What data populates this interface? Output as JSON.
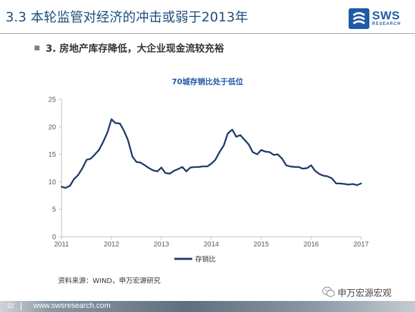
{
  "slide": {
    "title": "3.3 本轮监管对经济的冲击或弱于2013年",
    "subheading": "3. 房地产库存降低，大企业现金流较充裕"
  },
  "logo": {
    "text": "SWS",
    "subtext": "RESEARCH"
  },
  "source_note": "资料来源：WIND，申万宏源研究",
  "wechat_label": "申万宏源宏观",
  "footer": {
    "page_number": "22",
    "url": "www.swsresearch.com",
    "bar_color": "#5f6f80"
  },
  "colors": {
    "title": "#1f4e79",
    "accent": "#1f5aa6",
    "series": "#1f3b6b",
    "axis": "#bfbfbf"
  },
  "chart_data": {
    "type": "line",
    "title": "70城存销比处于低位",
    "xlabel": "",
    "ylabel": "",
    "ylim": [
      0,
      25
    ],
    "xlim": [
      2011,
      2017
    ],
    "y_ticks": [
      "0",
      "5",
      "10",
      "15",
      "20",
      "25"
    ],
    "x_ticks": [
      "2011",
      "2012",
      "2013",
      "2014",
      "2015",
      "2016",
      "2017"
    ],
    "grid": false,
    "legend": "bottom-center",
    "series": [
      {
        "name": "存销比",
        "x": [
          2011.0,
          2011.08,
          2011.17,
          2011.25,
          2011.33,
          2011.42,
          2011.5,
          2011.58,
          2011.67,
          2011.75,
          2011.83,
          2011.92,
          2012.0,
          2012.08,
          2012.17,
          2012.25,
          2012.33,
          2012.42,
          2012.5,
          2012.58,
          2012.67,
          2012.75,
          2012.83,
          2012.92,
          2013.0,
          2013.08,
          2013.17,
          2013.25,
          2013.33,
          2013.42,
          2013.5,
          2013.58,
          2013.67,
          2013.75,
          2013.83,
          2013.92,
          2014.0,
          2014.08,
          2014.17,
          2014.25,
          2014.33,
          2014.42,
          2014.5,
          2014.58,
          2014.67,
          2014.75,
          2014.83,
          2014.92,
          2015.0,
          2015.08,
          2015.17,
          2015.25,
          2015.33,
          2015.42,
          2015.5,
          2015.58,
          2015.67,
          2015.75,
          2015.83,
          2015.92,
          2016.0,
          2016.08,
          2016.17,
          2016.25,
          2016.33,
          2016.42,
          2016.5,
          2016.58,
          2016.67,
          2016.75,
          2016.83,
          2016.92,
          2017.0
        ],
        "values": [
          9.1,
          8.9,
          9.3,
          10.5,
          11.2,
          12.5,
          14.0,
          14.2,
          15.0,
          15.8,
          17.2,
          19.0,
          21.4,
          20.7,
          20.6,
          19.3,
          17.6,
          14.6,
          13.6,
          13.5,
          13.0,
          12.5,
          12.1,
          11.9,
          12.6,
          11.6,
          11.5,
          12.0,
          12.3,
          12.7,
          11.9,
          12.6,
          12.7,
          12.7,
          12.8,
          12.8,
          13.3,
          14.0,
          15.5,
          16.6,
          18.8,
          19.5,
          18.2,
          18.5,
          17.6,
          16.8,
          15.4,
          15.0,
          15.8,
          15.5,
          15.4,
          14.9,
          15.0,
          14.2,
          13.0,
          12.8,
          12.7,
          12.7,
          12.4,
          12.5,
          13.0,
          12.0,
          11.4,
          11.1,
          11.0,
          10.6,
          9.7,
          9.7,
          9.6,
          9.5,
          9.6,
          9.4,
          9.7
        ]
      }
    ]
  }
}
